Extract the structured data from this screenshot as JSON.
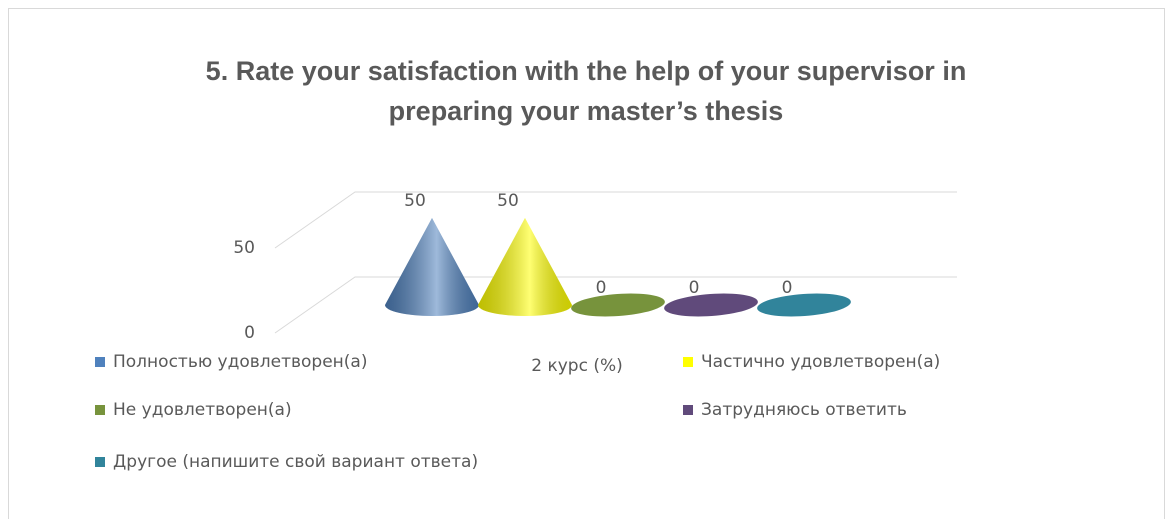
{
  "chart_data": {
    "type": "cone3d",
    "title": [
      "5. Rate your satisfaction with the help of your supervisor in",
      "preparing your master’s thesis"
    ],
    "categories": [
      "2 курс (%)"
    ],
    "series": [
      {
        "name": "Полностью удовлетворен(а)",
        "color": "#4f81bd",
        "values": [
          50
        ]
      },
      {
        "name": "Частично удовлетворен(а)",
        "color": "#ffff00",
        "values": [
          50
        ]
      },
      {
        "name": "Не удовлетворен(а)",
        "color": "#77933c",
        "values": [
          0
        ]
      },
      {
        "name": "Затрудняюсь ответить",
        "color": "#604a7b",
        "values": [
          0
        ]
      },
      {
        "name": "Другое (напишите свой вариант ответа)",
        "color": "#31849b",
        "values": [
          0
        ]
      }
    ],
    "ylim": [
      0,
      50
    ],
    "yticks": [
      0,
      50
    ],
    "grid": true,
    "legend": "bottom"
  }
}
